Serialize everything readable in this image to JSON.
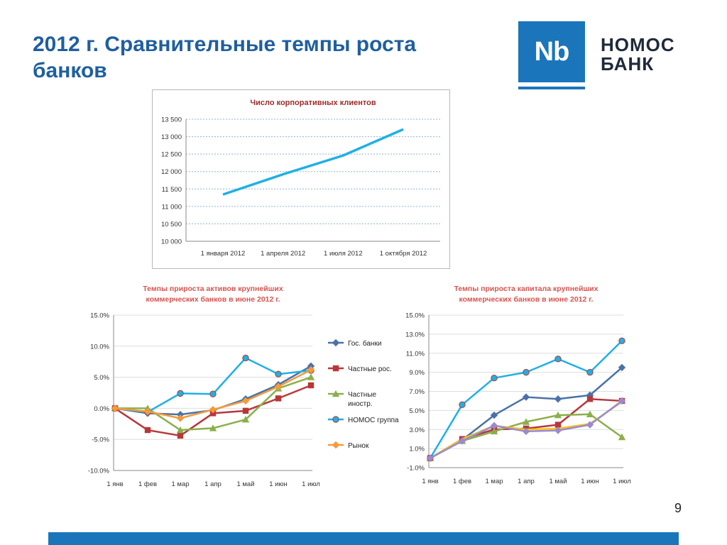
{
  "slide": {
    "title": "2012 г. Сравнительные темпы роста банков",
    "page_number": "9",
    "brand_color": "#1a75bb",
    "title_color": "#1f5f9f"
  },
  "logo": {
    "mark": "Nb",
    "line1": "НОМОС",
    "line2": "БАНК"
  },
  "chart_data": [
    {
      "type": "line",
      "title": "Число корпоративных клиентов",
      "categories": [
        "1 января 2012",
        "1 апреля 2012",
        "1 июля 2012",
        "1 октября 2012"
      ],
      "series": [
        {
          "values": [
            11340,
            11920,
            12460,
            13210
          ],
          "color": "#1fb0e6"
        }
      ],
      "ylim": [
        10000,
        13500
      ],
      "yticks": [
        "10 000",
        "10 500",
        "11 000",
        "11 500",
        "12 000",
        "12 500",
        "13 000",
        "13 500"
      ],
      "grid": true
    },
    {
      "type": "line",
      "title_lines": [
        "Темпы прироста активов крупнейших",
        "коммерческих банков в июне 2012 г."
      ],
      "categories": [
        "1 янв",
        "1 фев",
        "1 мар",
        "1 апр",
        "1 май",
        "1 июн",
        "1 июл"
      ],
      "ylim": [
        -10,
        15
      ],
      "yticks": [
        "-10.0%",
        "-5.0%",
        "0.0%",
        "5.0%",
        "10.0%",
        "15.0%"
      ],
      "legend_position": "right",
      "series": [
        {
          "name": "Гос. банки",
          "color": "#4a72a8",
          "marker": "diamond",
          "values": [
            0.0,
            -0.8,
            -1.0,
            -0.3,
            1.5,
            3.8,
            6.8
          ]
        },
        {
          "name": "Частные рос.",
          "color": "#b8373a",
          "marker": "square",
          "values": [
            0.0,
            -3.5,
            -4.4,
            -0.8,
            -0.4,
            1.6,
            3.7
          ]
        },
        {
          "name": "Частные иностр.",
          "color": "#8ab04a",
          "marker": "triangle",
          "values": [
            0.0,
            0.0,
            -3.5,
            -3.2,
            -1.8,
            3.2,
            5.0
          ]
        },
        {
          "name": "НОМОС группа",
          "color": "#1fb0e6",
          "marker": "circle",
          "values": [
            0.0,
            -0.6,
            2.4,
            2.3,
            8.1,
            5.5,
            6.1
          ]
        },
        {
          "name": "Рынок",
          "color": "#f59a3b",
          "marker": "diamond",
          "values": [
            0.0,
            -0.5,
            -1.6,
            -0.2,
            1.2,
            3.5,
            6.2
          ]
        }
      ]
    },
    {
      "type": "line",
      "title_lines": [
        "Темпы прироста капитала крупнейших",
        "коммерческих банков в июне 2012 г."
      ],
      "categories": [
        "1 янв",
        "1 фев",
        "1 мар",
        "1 апр",
        "1 май",
        "1 июн",
        "1 июл"
      ],
      "ylim": [
        -1,
        15
      ],
      "yticks": [
        "-1.0%",
        "1.0%",
        "3.0%",
        "5.0%",
        "7.0%",
        "9.0%",
        "11.0%",
        "13.0%",
        "15.0%"
      ],
      "series": [
        {
          "color": "#4a72a8",
          "marker": "diamond",
          "values": [
            0.0,
            1.9,
            4.5,
            6.4,
            6.2,
            6.6,
            9.5
          ]
        },
        {
          "color": "#b8373a",
          "marker": "square",
          "values": [
            0.0,
            2.0,
            3.0,
            3.1,
            3.5,
            6.2,
            6.0
          ]
        },
        {
          "color": "#8ab04a",
          "marker": "triangle",
          "values": [
            0.0,
            1.8,
            2.8,
            3.8,
            4.5,
            4.6,
            2.2
          ]
        },
        {
          "color": "#f5c518",
          "marker": "none",
          "values": [
            0.0,
            2.0,
            3.4,
            3.0,
            3.1,
            3.6,
            5.9
          ]
        },
        {
          "color": "#1fb0e6",
          "marker": "circle",
          "values": [
            0.0,
            5.6,
            8.4,
            9.0,
            10.4,
            9.0,
            12.3
          ]
        },
        {
          "color": "#9b8ad0",
          "marker": "diamond",
          "values": [
            0.0,
            1.8,
            3.4,
            2.8,
            2.9,
            3.5,
            6.0
          ]
        }
      ]
    }
  ]
}
